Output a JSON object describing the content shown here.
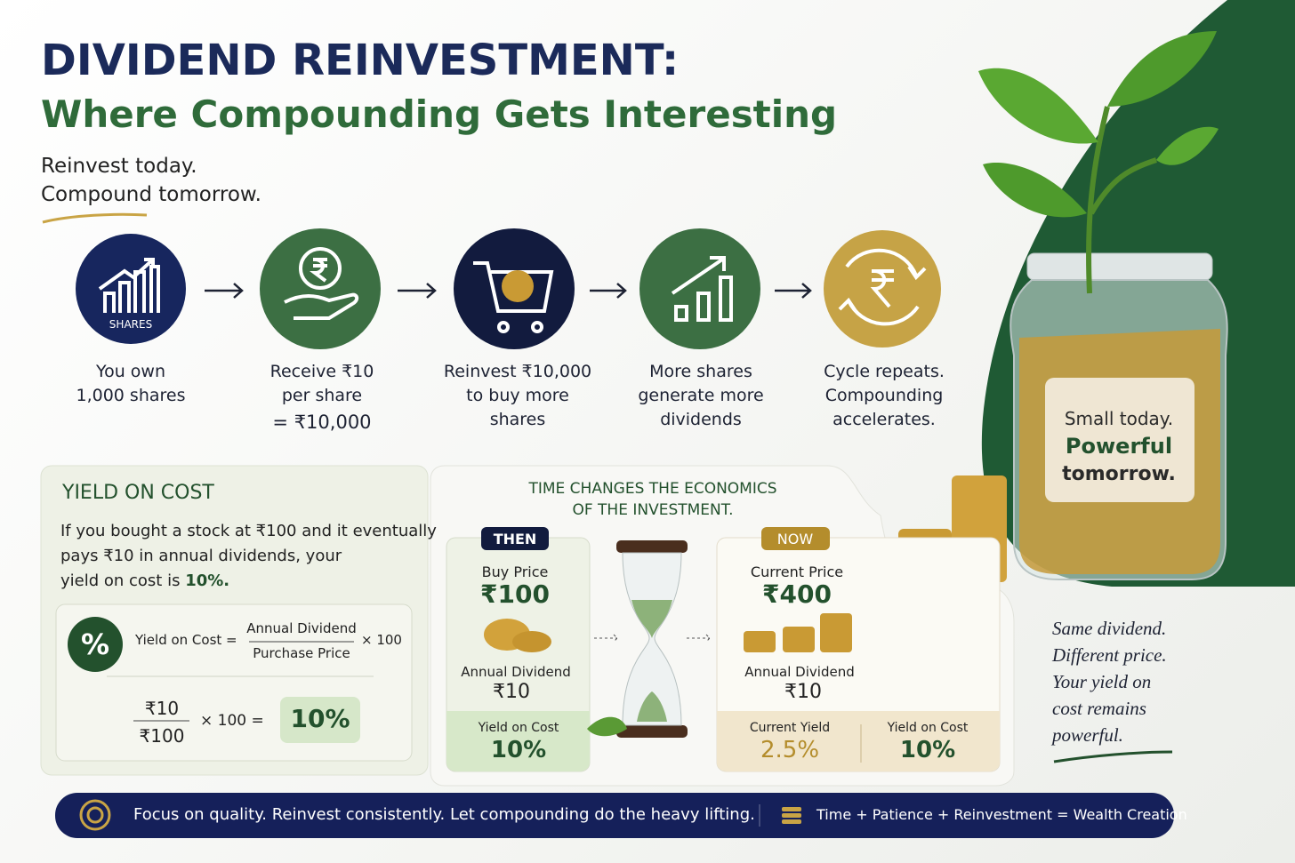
{
  "header": {
    "title": "DIVIDEND REINVESTMENT:",
    "subtitle": "Where Compounding Gets Interesting",
    "tagline": [
      "Reinvest today.",
      "Compound tomorrow."
    ]
  },
  "steps": [
    {
      "icon_label": "SHARES",
      "lines": [
        "You own",
        "1,000 shares"
      ]
    },
    {
      "lines": [
        "Receive ₹10",
        "per share",
        "= ₹10,000"
      ]
    },
    {
      "lines": [
        "Reinvest ₹10,000",
        "to buy more",
        "shares"
      ]
    },
    {
      "lines": [
        "More shares",
        "generate more",
        "dividends"
      ]
    },
    {
      "lines": [
        "Cycle repeats.",
        "Compounding",
        "accelerates."
      ]
    }
  ],
  "yield_on_cost": {
    "title": "YIELD ON COST",
    "lines": [
      "If you bought a stock at ₹100 and it eventually",
      "pays ₹10 in annual dividends, your"
    ],
    "last_line": "yield on cost is",
    "last_value": "10%.",
    "formula": {
      "symbol": "%",
      "label": "Yield on Cost =",
      "numerator": "Annual Dividend",
      "denominator": "Purchase Price",
      "multiplier": "× 100"
    },
    "example": {
      "numerator": "₹10",
      "denominator": "₹100",
      "operation": "× 100 =",
      "result": "10%"
    }
  },
  "time": {
    "title": [
      "TIME CHANGES THE ECONOMICS",
      "OF THE INVESTMENT."
    ],
    "then": {
      "badge": "THEN",
      "price_label": "Buy Price",
      "price": "₹100",
      "dividend_label": "Annual Dividend",
      "dividend": "₹10",
      "yield_label": "Yield on Cost",
      "yield": "10%"
    },
    "now": {
      "badge": "NOW",
      "price_label": "Current Price",
      "price": "₹400",
      "dividend_label": "Annual Dividend",
      "dividend": "₹10",
      "current_yield_label": "Current Yield",
      "current_yield": "2.5%",
      "yoc_label": "Yield on Cost",
      "yoc": "10%"
    }
  },
  "jar_label": [
    "Small today.",
    "Powerful",
    "tomorrow."
  ],
  "note": [
    "Same dividend.",
    "Different price.",
    "Your yield on",
    "cost remains",
    "powerful."
  ],
  "footer": {
    "message": "Focus on quality. Reinvest consistently. Let compounding do the heavy lifting.",
    "equation": "Time + Patience + Reinvestment = Wealth Creation"
  }
}
